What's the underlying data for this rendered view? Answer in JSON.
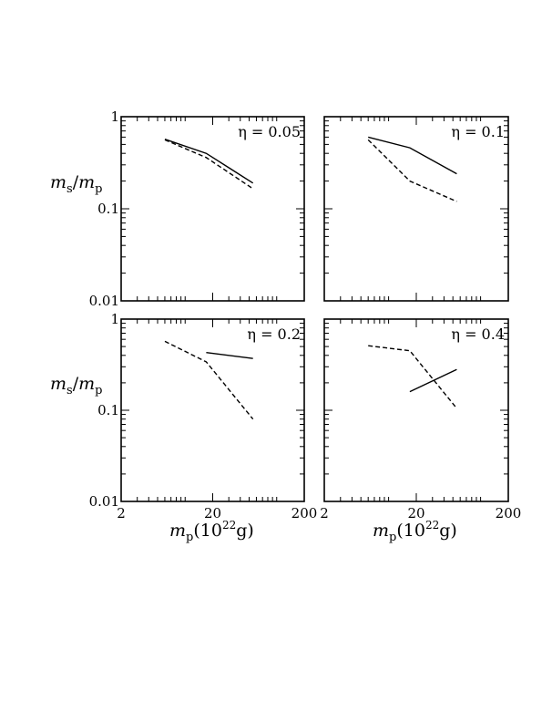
{
  "figure": {
    "ylabel": "m_s/m_p",
    "xlabel": "m_p(10^22 g)"
  },
  "chart_data": [
    {
      "type": "line",
      "annotation": "η = 0.05",
      "xscale": "log",
      "yscale": "log",
      "xlim": [
        2,
        200
      ],
      "ylim": [
        0.01,
        1
      ],
      "x_ticks": [
        "2",
        "20",
        "200"
      ],
      "y_ticks": [
        "0.01",
        "0.1",
        "1"
      ],
      "series": [
        {
          "style": "solid",
          "x": [
            6,
            17,
            55
          ],
          "y": [
            0.57,
            0.4,
            0.19
          ]
        },
        {
          "style": "dashed",
          "x": [
            6,
            17,
            55
          ],
          "y": [
            0.56,
            0.36,
            0.165
          ]
        }
      ]
    },
    {
      "type": "line",
      "annotation": "η = 0.1",
      "xscale": "log",
      "yscale": "log",
      "xlim": [
        2,
        200
      ],
      "ylim": [
        0.01,
        1
      ],
      "x_ticks": [
        "2",
        "20",
        "200"
      ],
      "y_ticks": [
        "0.01",
        "0.1",
        "1"
      ],
      "series": [
        {
          "style": "solid",
          "x": [
            6,
            17,
            55
          ],
          "y": [
            0.6,
            0.46,
            0.24
          ]
        },
        {
          "style": "dashed",
          "x": [
            6,
            17,
            55
          ],
          "y": [
            0.56,
            0.2,
            0.12
          ]
        }
      ]
    },
    {
      "type": "line",
      "annotation": "η = 0.2",
      "xscale": "log",
      "yscale": "log",
      "xlim": [
        2,
        200
      ],
      "ylim": [
        0.01,
        1
      ],
      "x_ticks": [
        "2",
        "20",
        "200"
      ],
      "y_ticks": [
        "0.01",
        "0.1",
        "1"
      ],
      "series": [
        {
          "style": "solid",
          "x": [
            17,
            55
          ],
          "y": [
            0.43,
            0.37
          ]
        },
        {
          "style": "dashed",
          "x": [
            6,
            17,
            55
          ],
          "y": [
            0.57,
            0.34,
            0.08
          ]
        }
      ]
    },
    {
      "type": "line",
      "annotation": "η = 0.4",
      "xscale": "log",
      "yscale": "log",
      "xlim": [
        2,
        200
      ],
      "ylim": [
        0.01,
        1
      ],
      "x_ticks": [
        "2",
        "20",
        "200"
      ],
      "y_ticks": [
        "0.01",
        "0.1",
        "1"
      ],
      "series": [
        {
          "style": "solid",
          "x": [
            17,
            55
          ],
          "y": [
            0.16,
            0.28
          ]
        },
        {
          "style": "dashed",
          "x": [
            6,
            17,
            55
          ],
          "y": [
            0.51,
            0.45,
            0.105
          ]
        }
      ]
    }
  ]
}
